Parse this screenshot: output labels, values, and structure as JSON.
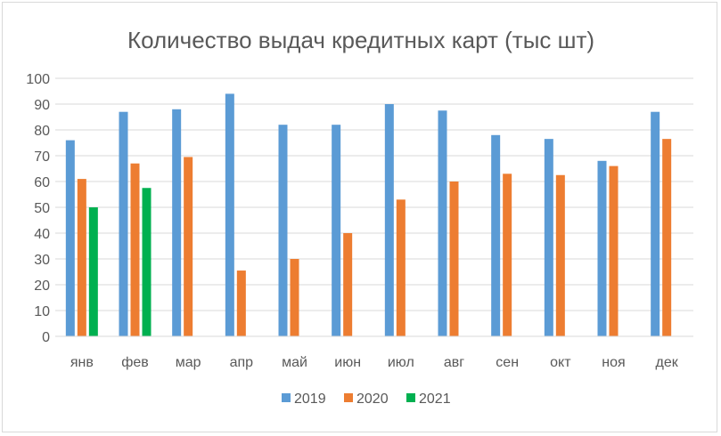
{
  "chart_data": {
    "type": "bar",
    "title": "Количество выдач кредитных карт (тыс шт)",
    "xlabel": "",
    "ylabel": "",
    "ylim": [
      0,
      100
    ],
    "yticks": [
      "0",
      "10",
      "20",
      "30",
      "40",
      "50",
      "60",
      "70",
      "80",
      "90",
      "100"
    ],
    "categories": [
      "янв",
      "фев",
      "мар",
      "апр",
      "май",
      "июн",
      "июл",
      "авг",
      "сен",
      "окт",
      "ноя",
      "дек"
    ],
    "series": [
      {
        "name": "2019",
        "color": "#5b9bd5",
        "values": [
          76,
          87,
          88,
          94,
          82,
          82,
          90,
          87.5,
          78,
          76.5,
          68,
          87
        ]
      },
      {
        "name": "2020",
        "color": "#ed7d31",
        "values": [
          61,
          67,
          69.5,
          25.5,
          30,
          40,
          53,
          60,
          63,
          62.5,
          66,
          76.5
        ]
      },
      {
        "name": "2021",
        "color": "#00b050",
        "values": [
          50,
          57.5,
          null,
          null,
          null,
          null,
          null,
          null,
          null,
          null,
          null,
          null
        ]
      }
    ],
    "grid": true,
    "legend_position": "bottom"
  }
}
